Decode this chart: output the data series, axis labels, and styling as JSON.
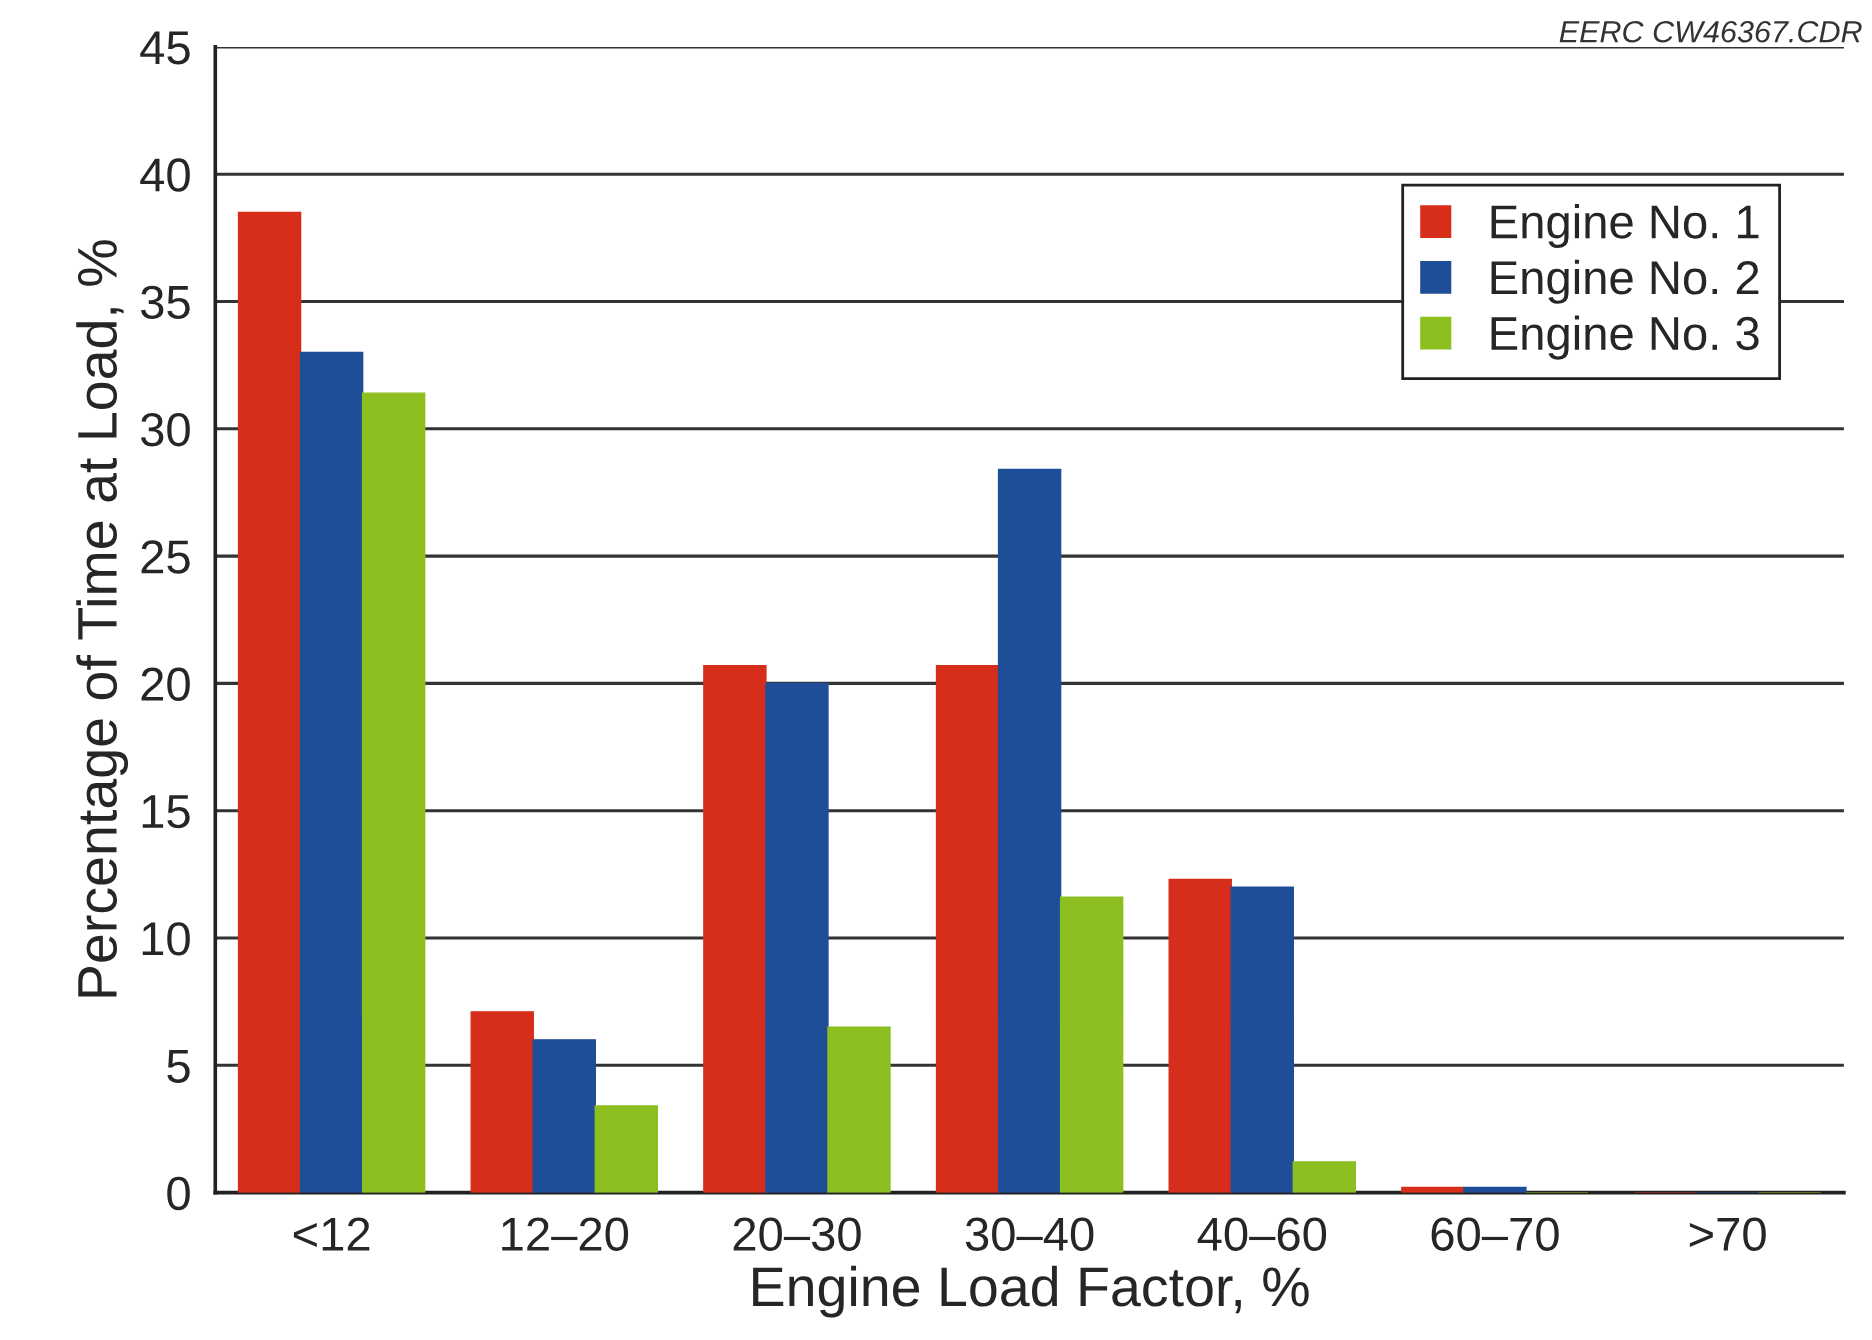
{
  "chart_data": {
    "type": "bar",
    "categories": [
      "<12",
      "12–20",
      "20–30",
      "30–40",
      "40–60",
      "60–70",
      ">70"
    ],
    "series": [
      {
        "name": "Engine No. 1",
        "color": "#d62e1a",
        "values": [
          38.5,
          7.1,
          20.7,
          20.7,
          12.3,
          0.2,
          0
        ]
      },
      {
        "name": "Engine No. 2",
        "color": "#1f4e99",
        "values": [
          33.0,
          6.0,
          20.0,
          28.4,
          12.0,
          0.2,
          0
        ]
      },
      {
        "name": "Engine No. 3",
        "color": "#8cbf1f",
        "values": [
          31.4,
          3.4,
          6.5,
          11.6,
          1.2,
          0,
          0
        ]
      }
    ],
    "xlabel": "Engine Load Factor, %",
    "ylabel": "Percentage of Time at Load, %",
    "ylim": [
      0,
      45
    ],
    "yticks": [
      0,
      5,
      10,
      15,
      20,
      25,
      30,
      35,
      40,
      45
    ],
    "grid": "y",
    "legend": "top right",
    "annotations": [
      "EERC CW46367.CDR"
    ]
  }
}
